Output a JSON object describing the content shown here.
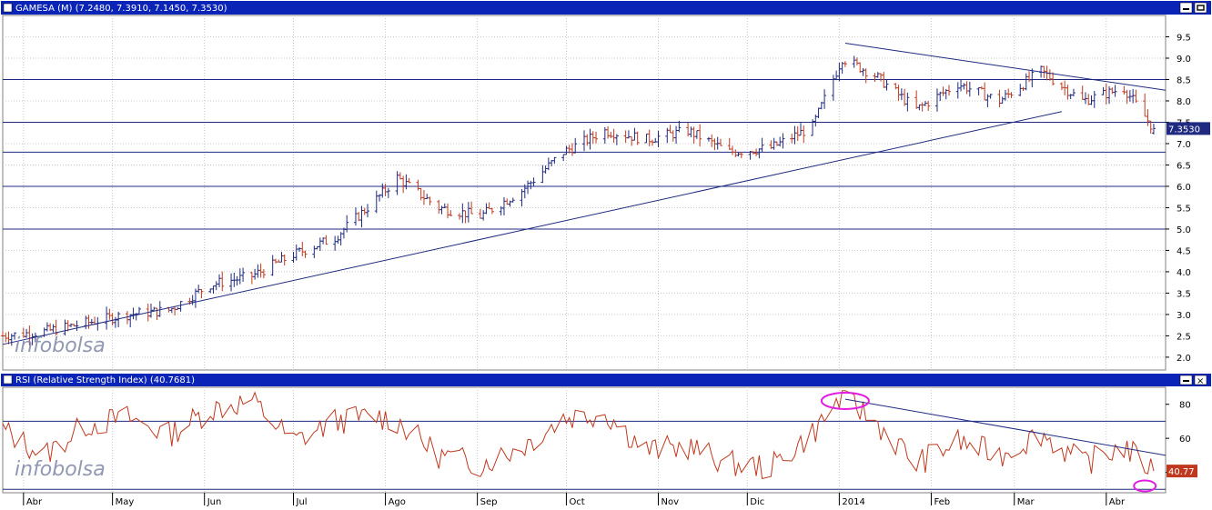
{
  "price_panel": {
    "header": "GAMESA (M) (7.2480, 7.3910, 7.1450, 7.3530)",
    "last_price_label": "7.3530",
    "watermark": "infobolsa",
    "yticks": [
      "2.0",
      "2.5",
      "3.0",
      "3.5",
      "4.0",
      "4.5",
      "5.0",
      "5.5",
      "6.0",
      "6.5",
      "7.0",
      "7.5",
      "8.0",
      "8.5",
      "9.0",
      "9.5"
    ]
  },
  "rsi_panel": {
    "header": "RSI (Relative Strength Index) (40.7681)",
    "last_value_label": "40.77",
    "watermark": "infobolsa",
    "yticks": [
      "40",
      "60",
      "80"
    ]
  },
  "xaxis": {
    "months": [
      "Abr",
      "May",
      "Jun",
      "Jul",
      "Ago",
      "Sep",
      "Oct",
      "Nov",
      "Dic",
      "2014",
      "Feb",
      "Mar",
      "Abr"
    ]
  },
  "colors": {
    "up_bar": "#1f2a80",
    "down_bar": "#c0391f",
    "rsi_line": "#c0391f",
    "trendline": "#1f2a80",
    "header_bg": "#0a24b8",
    "header_text": "#ffffff",
    "highlight_ellipse": "#e21ce2",
    "last_value_box_price": "#1f2a80",
    "last_value_box_rsi": "#c0391f"
  },
  "chart_data": [
    {
      "type": "ohlc",
      "title": "GAMESA (M) (7.2480, 7.3910, 7.1450, 7.3530)",
      "ylim": [
        1.7,
        10.0
      ],
      "grid": true,
      "x_dates": [
        "2013-03-25",
        "2013-04-08",
        "2013-04-22",
        "2013-05-06",
        "2013-05-20",
        "2013-06-03",
        "2013-06-17",
        "2013-07-01",
        "2013-07-15",
        "2013-07-29",
        "2013-08-05",
        "2013-08-19",
        "2013-09-02",
        "2013-09-16",
        "2013-09-30",
        "2013-10-14",
        "2013-10-28",
        "2013-11-11",
        "2013-11-25",
        "2013-12-09",
        "2013-12-23",
        "2014-01-02",
        "2014-01-13",
        "2014-01-27",
        "2014-02-10",
        "2014-02-24",
        "2014-03-10",
        "2014-03-24",
        "2014-04-07",
        "2014-04-17"
      ],
      "close_path": [
        2.5,
        2.6,
        2.8,
        3.0,
        3.1,
        3.7,
        3.9,
        4.4,
        4.8,
        5.7,
        6.2,
        5.5,
        5.3,
        5.9,
        6.8,
        7.3,
        7.1,
        7.3,
        6.8,
        6.9,
        7.4,
        9.0,
        8.6,
        7.8,
        8.4,
        8.0,
        8.7,
        8.0,
        8.3,
        7.35
      ],
      "last": {
        "open": 7.248,
        "high": 7.391,
        "low": 7.145,
        "close": 7.353
      },
      "horizontal_levels": [
        8.5,
        7.5,
        6.8,
        6.0,
        5.0
      ],
      "trendlines": [
        {
          "from": [
            "2013-03-25",
            2.3
          ],
          "to": [
            "2014-03-17",
            7.75
          ]
        },
        {
          "from": [
            "2014-01-03",
            9.35
          ],
          "to": [
            "2014-04-21",
            8.25
          ]
        }
      ]
    },
    {
      "type": "line",
      "title": "RSI (Relative Strength Index) (40.7681)",
      "ylim": [
        28,
        90
      ],
      "grid": true,
      "x_dates": [
        "2013-03-25",
        "2013-04-08",
        "2013-04-22",
        "2013-05-06",
        "2013-05-20",
        "2013-06-03",
        "2013-06-17",
        "2013-07-01",
        "2013-07-15",
        "2013-07-29",
        "2013-08-05",
        "2013-08-19",
        "2013-09-02",
        "2013-09-16",
        "2013-09-30",
        "2013-10-14",
        "2013-10-28",
        "2013-11-11",
        "2013-11-25",
        "2013-12-09",
        "2013-12-23",
        "2014-01-02",
        "2014-01-13",
        "2014-01-27",
        "2014-02-10",
        "2014-02-24",
        "2014-03-10",
        "2014-03-24",
        "2014-04-07",
        "2014-04-17"
      ],
      "values": [
        65,
        50,
        68,
        72,
        62,
        77,
        82,
        58,
        70,
        73,
        70,
        50,
        45,
        55,
        72,
        75,
        53,
        55,
        45,
        43,
        63,
        85,
        70,
        45,
        58,
        50,
        63,
        45,
        55,
        40.77
      ],
      "horizontal_levels": [
        70,
        30
      ],
      "trendlines": [
        {
          "from": [
            "2014-01-03",
            83
          ],
          "to": [
            "2014-04-21",
            50
          ]
        }
      ],
      "highlights": [
        {
          "date": "2014-01-03",
          "value": 82
        },
        {
          "date": "2014-04-14",
          "value": 32
        }
      ]
    }
  ]
}
